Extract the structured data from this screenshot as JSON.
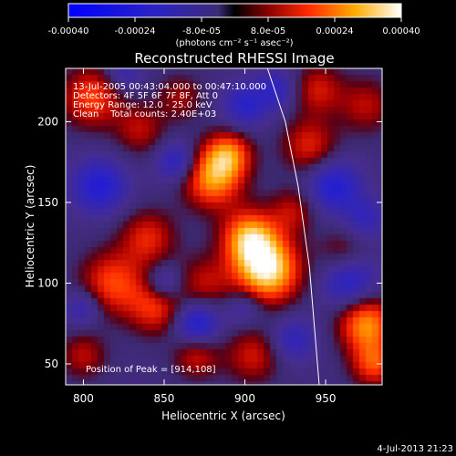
{
  "chart_data": {
    "type": "heatmap",
    "title": "Reconstructed RHESSI Image",
    "xlabel": "Heliocentric X (arcsec)",
    "ylabel": "Heliocentric Y (arcsec)",
    "x_ticks": [
      800,
      850,
      900,
      950
    ],
    "y_ticks": [
      50,
      100,
      150,
      200
    ],
    "xlim": [
      789,
      985
    ],
    "ylim": [
      37,
      233
    ],
    "colorbar": {
      "ticks": [
        "-0.00040",
        "-0.00024",
        "-8.0e-05",
        "8.0e-05",
        "0.00024",
        "0.00040"
      ],
      "label": "(photons cm⁻² s⁻¹ asec⁻²)",
      "range": [
        -0.0004,
        0.0004
      ]
    },
    "annotations": [
      "13-Jul-2005 00:43:04.000 to 00:47:10.000",
      "Detectors: 4F 5F 6F 7F 8F, Att 0",
      "Energy Range: 12.0 - 25.0 keV",
      "Clean    Total counts: 2.40E+03"
    ],
    "peak_label": "Position of Peak = [914,108]",
    "peak": {
      "x": 914,
      "y": 108
    },
    "blobs": [
      {
        "x": 914,
        "y": 108,
        "v": 1.0,
        "s": 14
      },
      {
        "x": 903,
        "y": 128,
        "v": 0.8,
        "s": 12
      },
      {
        "x": 880,
        "y": 165,
        "v": 0.75,
        "s": 13
      },
      {
        "x": 890,
        "y": 180,
        "v": 0.6,
        "s": 10
      },
      {
        "x": 818,
        "y": 100,
        "v": 0.55,
        "s": 14
      },
      {
        "x": 840,
        "y": 128,
        "v": 0.45,
        "s": 12
      },
      {
        "x": 805,
        "y": 215,
        "v": 0.55,
        "s": 13
      },
      {
        "x": 835,
        "y": 195,
        "v": 0.35,
        "s": 11
      },
      {
        "x": 845,
        "y": 85,
        "v": 0.5,
        "s": 12
      },
      {
        "x": 875,
        "y": 100,
        "v": 0.35,
        "s": 12
      },
      {
        "x": 940,
        "y": 185,
        "v": 0.45,
        "s": 12
      },
      {
        "x": 945,
        "y": 220,
        "v": 0.4,
        "s": 11
      },
      {
        "x": 975,
        "y": 210,
        "v": 0.35,
        "s": 12
      },
      {
        "x": 975,
        "y": 75,
        "v": 0.75,
        "s": 12
      },
      {
        "x": 980,
        "y": 50,
        "v": 0.55,
        "s": 10
      },
      {
        "x": 905,
        "y": 55,
        "v": 0.4,
        "s": 12
      },
      {
        "x": 800,
        "y": 55,
        "v": 0.35,
        "s": 10
      },
      {
        "x": 870,
        "y": 55,
        "v": 0.4,
        "s": 10
      },
      {
        "x": 930,
        "y": 145,
        "v": 0.35,
        "s": 10
      },
      {
        "x": 960,
        "y": 120,
        "v": 0.25,
        "s": 10
      },
      {
        "x": 860,
        "y": 215,
        "v": 0.3,
        "s": 10
      },
      {
        "x": 870,
        "y": 75,
        "v": -0.55,
        "s": 10
      },
      {
        "x": 810,
        "y": 160,
        "v": -0.5,
        "s": 12
      },
      {
        "x": 858,
        "y": 175,
        "v": -0.45,
        "s": 9
      },
      {
        "x": 850,
        "y": 100,
        "v": -0.4,
        "s": 8
      },
      {
        "x": 955,
        "y": 160,
        "v": -0.5,
        "s": 12
      },
      {
        "x": 965,
        "y": 100,
        "v": -0.45,
        "s": 12
      },
      {
        "x": 930,
        "y": 65,
        "v": -0.35,
        "s": 10
      },
      {
        "x": 900,
        "y": 210,
        "v": -0.4,
        "s": 10
      },
      {
        "x": 920,
        "y": 220,
        "v": -0.35,
        "s": 9
      },
      {
        "x": 825,
        "y": 230,
        "v": -0.3,
        "s": 8
      },
      {
        "x": 800,
        "y": 85,
        "v": -0.35,
        "s": 8
      },
      {
        "x": 900,
        "y": 85,
        "v": -0.3,
        "s": 8
      },
      {
        "x": 975,
        "y": 140,
        "v": -0.3,
        "s": 9
      }
    ],
    "limb": [
      [
        914,
        233
      ],
      [
        925,
        200
      ],
      [
        933,
        160
      ],
      [
        940,
        110
      ],
      [
        946,
        37
      ]
    ]
  },
  "footer": {
    "timestamp": "4-Jul-2013 21:23"
  }
}
